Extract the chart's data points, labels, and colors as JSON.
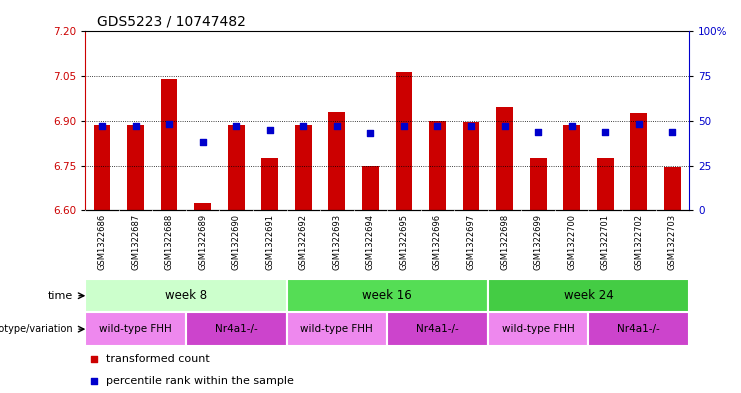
{
  "title": "GDS5223 / 10747482",
  "samples": [
    "GSM1322686",
    "GSM1322687",
    "GSM1322688",
    "GSM1322689",
    "GSM1322690",
    "GSM1322691",
    "GSM1322692",
    "GSM1322693",
    "GSM1322694",
    "GSM1322695",
    "GSM1322696",
    "GSM1322697",
    "GSM1322698",
    "GSM1322699",
    "GSM1322700",
    "GSM1322701",
    "GSM1322702",
    "GSM1322703"
  ],
  "transformed_count": [
    6.885,
    6.885,
    7.04,
    6.625,
    6.885,
    6.775,
    6.885,
    6.93,
    6.75,
    7.065,
    6.9,
    6.895,
    6.945,
    6.775,
    6.885,
    6.775,
    6.925,
    6.745
  ],
  "percentile_rank": [
    47,
    47,
    48,
    38,
    47,
    45,
    47,
    47,
    43,
    47,
    47,
    47,
    47,
    44,
    47,
    44,
    48,
    44
  ],
  "ylim_left": [
    6.6,
    7.2
  ],
  "ylim_right": [
    0,
    100
  ],
  "yticks_left": [
    6.6,
    6.75,
    6.9,
    7.05,
    7.2
  ],
  "yticks_right": [
    0,
    25,
    50,
    75,
    100
  ],
  "grid_lines": [
    6.75,
    6.9,
    7.05
  ],
  "bar_color": "#cc0000",
  "dot_color": "#0000cc",
  "bar_bottom": 6.6,
  "time_groups": [
    {
      "label": "week 8",
      "start": 0,
      "end": 5,
      "color": "#ccffcc"
    },
    {
      "label": "week 16",
      "start": 6,
      "end": 11,
      "color": "#55dd55"
    },
    {
      "label": "week 24",
      "start": 12,
      "end": 17,
      "color": "#44cc44"
    }
  ],
  "genotype_groups": [
    {
      "label": "wild-type FHH",
      "start": 0,
      "end": 2,
      "color": "#ee88ee"
    },
    {
      "label": "Nr4a1-/-",
      "start": 3,
      "end": 5,
      "color": "#cc44cc"
    },
    {
      "label": "wild-type FHH",
      "start": 6,
      "end": 8,
      "color": "#ee88ee"
    },
    {
      "label": "Nr4a1-/-",
      "start": 9,
      "end": 11,
      "color": "#cc44cc"
    },
    {
      "label": "wild-type FHH",
      "start": 12,
      "end": 14,
      "color": "#ee88ee"
    },
    {
      "label": "Nr4a1-/-",
      "start": 15,
      "end": 17,
      "color": "#cc44cc"
    }
  ],
  "background_color": "#ffffff",
  "plot_bg_color": "#ffffff",
  "xticklabel_bg": "#cccccc",
  "left_tick_color": "#cc0000",
  "right_tick_color": "#0000cc"
}
